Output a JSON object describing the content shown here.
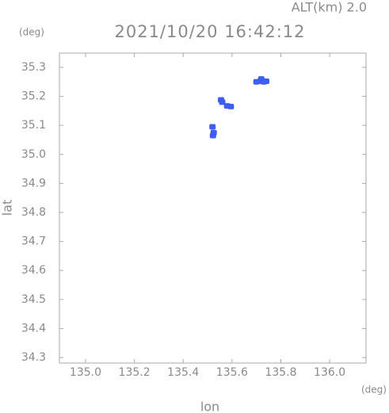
{
  "chart_data": {
    "type": "scatter",
    "title": "2021/10/20 16:42:12",
    "subtitle": "ALT(km) 2.0",
    "x_label": "lon",
    "y_label": "lat",
    "x_unit": "(deg)",
    "y_unit": "(deg)",
    "color": "#3f5ef0",
    "x": [
      135.7,
      135.715,
      135.73,
      135.74,
      135.72,
      135.555,
      135.56,
      135.58,
      135.595,
      135.52,
      135.525,
      135.522
    ],
    "values": [
      35.25,
      35.252,
      35.25,
      35.252,
      35.26,
      35.188,
      35.18,
      35.167,
      35.165,
      35.095,
      35.075,
      35.065
    ],
    "xlim": [
      134.893,
      136.149
    ],
    "ylim": [
      34.281,
      35.349
    ],
    "xticks": [
      {
        "value": 135.0,
        "label": "135.0"
      },
      135.2,
      135.4,
      135.6,
      135.8,
      {
        "value": 136.0,
        "label": "136.0"
      }
    ],
    "yticks": [
      34.3,
      34.4,
      34.5,
      34.6,
      34.7,
      34.8,
      34.9,
      {
        "value": 35.0,
        "label": "35.0"
      },
      35.1,
      35.2,
      35.3
    ],
    "grid": false
  }
}
